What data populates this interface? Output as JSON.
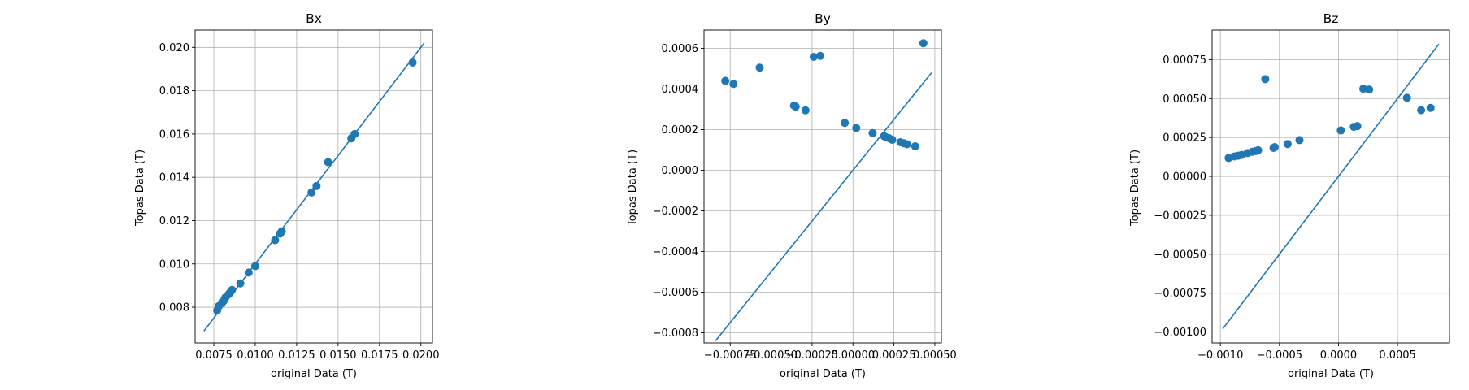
{
  "chart_data": [
    {
      "type": "scatter",
      "title": "Bx",
      "xlabel": "original Data (T)",
      "ylabel": "Topas Data (T)",
      "xlim": [
        0.00637,
        0.0207
      ],
      "ylim": [
        0.00635,
        0.0208
      ],
      "xticks": [
        0.0075,
        0.01,
        0.0125,
        0.015,
        0.0175,
        0.02
      ],
      "xtick_labels": [
        "0.0075",
        "0.0100",
        "0.0125",
        "0.0150",
        "0.0175",
        "0.0200"
      ],
      "yticks": [
        0.008,
        0.01,
        0.012,
        0.014,
        0.016,
        0.018,
        0.02
      ],
      "ytick_labels": [
        "0.008",
        "0.010",
        "0.012",
        "0.014",
        "0.016",
        "0.018",
        "0.020"
      ],
      "grid": true,
      "reference_line": [
        [
          0.0069,
          0.0069
        ],
        [
          0.0202,
          0.0202
        ]
      ],
      "color": "#1f77b4",
      "points": [
        [
          0.0077,
          0.00785
        ],
        [
          0.0078,
          0.00805
        ],
        [
          0.008,
          0.0082
        ],
        [
          0.0081,
          0.0083
        ],
        [
          0.0082,
          0.00845
        ],
        [
          0.0084,
          0.0086
        ],
        [
          0.0085,
          0.0087
        ],
        [
          0.0086,
          0.0088
        ],
        [
          0.0091,
          0.0091
        ],
        [
          0.0096,
          0.0096
        ],
        [
          0.01,
          0.0099
        ],
        [
          0.0112,
          0.0111
        ],
        [
          0.0115,
          0.0114
        ],
        [
          0.0116,
          0.0115
        ],
        [
          0.0134,
          0.0133
        ],
        [
          0.0137,
          0.0136
        ],
        [
          0.0144,
          0.0147
        ],
        [
          0.0158,
          0.0158
        ],
        [
          0.016,
          0.016
        ],
        [
          0.0195,
          0.0193
        ]
      ]
    },
    {
      "type": "scatter",
      "title": "By",
      "xlabel": "original Data (T)",
      "ylabel": "Topas Data (T)",
      "xlim": [
        -0.00091,
        0.00054
      ],
      "ylim": [
        -0.00085,
        0.00069
      ],
      "xticks": [
        -0.00075,
        -0.0005,
        -0.00025,
        0.0,
        0.00025,
        0.0005
      ],
      "xtick_labels": [
        "−0.00075",
        "−0.00050",
        "−0.00025",
        "0.00000",
        "0.00025",
        "0.00050"
      ],
      "yticks": [
        -0.0008,
        -0.0006,
        -0.0004,
        -0.0002,
        0.0,
        0.0002,
        0.0004,
        0.0006
      ],
      "ytick_labels": [
        "−0.0008",
        "−0.0006",
        "−0.0004",
        "−0.0002",
        "0.0000",
        "0.0002",
        "0.0004",
        "0.0006"
      ],
      "grid": true,
      "reference_line": [
        [
          -0.00084,
          -0.00084
        ],
        [
          0.00048,
          0.00048
        ]
      ],
      "color": "#1f77b4",
      "points": [
        [
          -0.00078,
          0.00044
        ],
        [
          -0.00073,
          0.000425
        ],
        [
          -0.00057,
          0.000505
        ],
        [
          -0.00036,
          0.000318
        ],
        [
          -0.00035,
          0.000313
        ],
        [
          -0.00029,
          0.000295
        ],
        [
          -0.00024,
          0.000558
        ],
        [
          -0.0002,
          0.000563
        ],
        [
          -5e-05,
          0.000233
        ],
        [
          2e-05,
          0.000208
        ],
        [
          0.00012,
          0.000183
        ],
        [
          0.00019,
          0.000168
        ],
        [
          0.0002,
          0.000163
        ],
        [
          0.00022,
          0.000158
        ],
        [
          0.00024,
          0.00015
        ],
        [
          0.00029,
          0.000138
        ],
        [
          0.00031,
          0.000133
        ],
        [
          0.00033,
          0.000128
        ],
        [
          0.00038,
          0.000118
        ],
        [
          0.00043,
          0.000625
        ]
      ]
    },
    {
      "type": "scatter",
      "title": "Bz",
      "xlabel": "original Data (T)",
      "ylabel": "Topas Data (T)",
      "xlim": [
        -0.00107,
        0.00094
      ],
      "ylim": [
        -0.00107,
        0.00094
      ],
      "xticks": [
        -0.001,
        -0.0005,
        0.0,
        0.0005
      ],
      "xtick_labels": [
        "−0.0010",
        "−0.0005",
        "0.0000",
        "0.0005"
      ],
      "yticks": [
        -0.001,
        -0.00075,
        -0.0005,
        -0.00025,
        0.0,
        0.00025,
        0.0005,
        0.00075
      ],
      "ytick_labels": [
        "−0.00100",
        "−0.00075",
        "−0.00050",
        "−0.00025",
        "0.00000",
        "0.00025",
        "0.00050",
        "0.00075"
      ],
      "grid": true,
      "reference_line": [
        [
          -0.00098,
          -0.00098
        ],
        [
          0.00085,
          0.00085
        ]
      ],
      "color": "#1f77b4",
      "points": [
        [
          -0.00093,
          0.000118
        ],
        [
          -0.00088,
          0.000128
        ],
        [
          -0.00085,
          0.000133
        ],
        [
          -0.00082,
          0.000138
        ],
        [
          -0.00077,
          0.00015
        ],
        [
          -0.00073,
          0.000158
        ],
        [
          -0.0007,
          0.000163
        ],
        [
          -0.00068,
          0.000168
        ],
        [
          -0.00055,
          0.000183
        ],
        [
          -0.00054,
          0.000188
        ],
        [
          -0.00043,
          0.000208
        ],
        [
          -0.00033,
          0.000233
        ],
        [
          2e-05,
          0.000295
        ],
        [
          0.00013,
          0.000318
        ],
        [
          0.00016,
          0.000323
        ],
        [
          -0.00062,
          0.000625
        ],
        [
          0.00021,
          0.000563
        ],
        [
          0.00026,
          0.000558
        ],
        [
          0.00058,
          0.000505
        ],
        [
          0.0007,
          0.000425
        ],
        [
          0.00078,
          0.00044
        ]
      ]
    }
  ]
}
